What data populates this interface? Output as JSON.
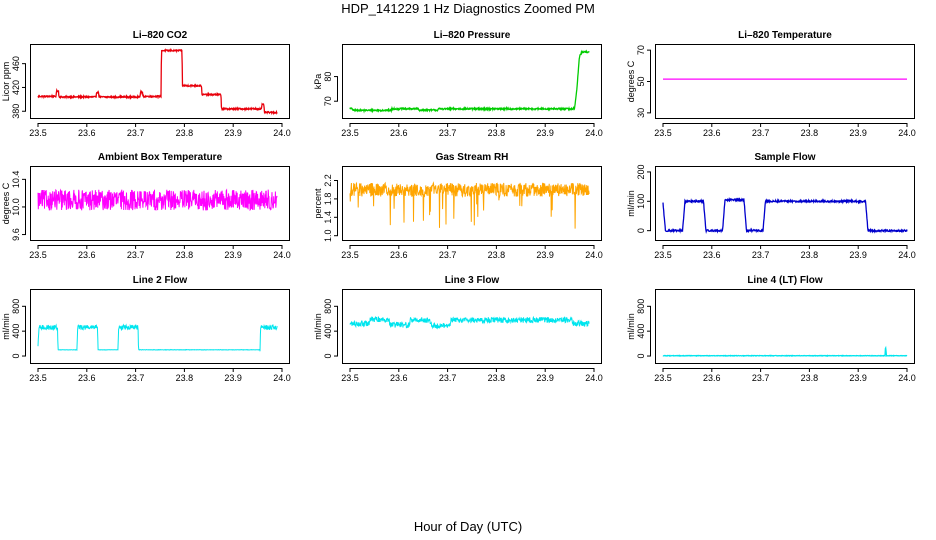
{
  "figure": {
    "title": "HDP_141229  1 Hz Diagnostics Zoomed PM",
    "xlabel": "Hour of Day (UTC)"
  },
  "chart_data": [
    {
      "type": "line",
      "title": "Li–820 CO2",
      "ylabel": "Licor ppm",
      "color": "#e8000b",
      "xlim": [
        23.5,
        24.0
      ],
      "xticks": [
        "23.5",
        "23.6",
        "23.7",
        "23.8",
        "23.9",
        "24.0"
      ],
      "ylim": [
        372,
        488
      ],
      "yticks": [
        "380",
        "420",
        "460"
      ],
      "ytick_values": [
        380,
        420,
        460
      ],
      "noise": 1.2,
      "series": [
        {
          "x": [
            23.5,
            23.537,
            23.538,
            23.542,
            23.543,
            23.619,
            23.62,
            23.624,
            23.625,
            23.709,
            23.71,
            23.714,
            23.715,
            23.752,
            23.753,
            23.795,
            23.796,
            23.835,
            23.836,
            23.875,
            23.876,
            23.958,
            23.959,
            23.963,
            23.964,
            23.99
          ],
          "y": [
            405,
            405,
            414,
            414,
            404,
            404,
            412,
            412,
            404,
            404,
            412,
            412,
            405,
            405,
            482,
            482,
            423,
            423,
            408,
            408,
            384,
            384,
            391,
            391,
            378,
            378
          ]
        }
      ]
    },
    {
      "type": "line",
      "title": "Li–820 Pressure",
      "ylabel": "kPa",
      "color": "#00cc00",
      "xlim": [
        23.5,
        24.0
      ],
      "xticks": [
        "23.5",
        "23.6",
        "23.7",
        "23.8",
        "23.9",
        "24.0"
      ],
      "ylim": [
        64,
        92
      ],
      "yticks": [
        "70",
        "80"
      ],
      "ytick_values": [
        70,
        80
      ],
      "noise": 0.3,
      "series": [
        {
          "x": [
            23.5,
            23.505,
            23.506,
            23.585,
            23.586,
            23.64,
            23.641,
            23.68,
            23.681,
            23.96,
            23.965,
            23.97,
            23.975,
            23.99
          ],
          "y": [
            67,
            67,
            66.3,
            66.3,
            66.9,
            66.9,
            66.4,
            66.4,
            66.9,
            66.9,
            75,
            88,
            90,
            90
          ]
        }
      ]
    },
    {
      "type": "line",
      "title": "Li–820 Temperature",
      "ylabel": "degrees C",
      "color": "#ff00ff",
      "xlim": [
        23.5,
        24.0
      ],
      "xticks": [
        "23.5",
        "23.6",
        "23.7",
        "23.8",
        "23.9",
        "24.0"
      ],
      "ylim": [
        28,
        72
      ],
      "yticks": [
        "30",
        "50",
        "70"
      ],
      "ytick_values": [
        30,
        50,
        70
      ],
      "noise": 0,
      "series": [
        {
          "x": [
            23.5,
            24.0
          ],
          "y": [
            51.5,
            51.5
          ]
        }
      ]
    },
    {
      "type": "line",
      "title": "Ambient Box Temperature",
      "ylabel": "degrees C",
      "color": "#ff00ff",
      "xlim": [
        23.5,
        24.0
      ],
      "xticks": [
        "23.5",
        "23.6",
        "23.7",
        "23.8",
        "23.9",
        "24.0"
      ],
      "ylim": [
        9.55,
        10.55
      ],
      "yticks": [
        "9.6",
        "10.0",
        "10.4"
      ],
      "ytick_values": [
        9.6,
        10.0,
        10.4
      ],
      "noise": 0.15,
      "series": [
        {
          "x": [
            23.5,
            23.99
          ],
          "y": [
            10.1,
            10.1
          ]
        }
      ]
    },
    {
      "type": "line",
      "title": "Gas Stream RH",
      "ylabel": "percent",
      "color": "#ffa500",
      "xlim": [
        23.5,
        24.0
      ],
      "xticks": [
        "23.5",
        "23.6",
        "23.7",
        "23.8",
        "23.9",
        "24.0"
      ],
      "ylim": [
        0.95,
        2.45
      ],
      "yticks": [
        "1.0",
        "1.4",
        "1.8",
        "2.2"
      ],
      "ytick_values": [
        1.0,
        1.4,
        1.8,
        2.2
      ],
      "noise": 0.15,
      "series": [
        {
          "x": [
            23.5,
            23.99
          ],
          "y": [
            2.0,
            2.0
          ]
        }
      ]
    },
    {
      "type": "line",
      "title": "Sample Flow",
      "ylabel": "ml/min",
      "color": "#0000cc",
      "xlim": [
        23.5,
        24.0
      ],
      "xticks": [
        "23.5",
        "23.6",
        "23.7",
        "23.8",
        "23.9",
        "24.0"
      ],
      "ylim": [
        -25,
        210
      ],
      "yticks": [
        "0",
        "100",
        "200"
      ],
      "ytick_values": [
        0,
        100,
        200
      ],
      "noise": 3,
      "series": [
        {
          "x": [
            23.5,
            23.505,
            23.506,
            23.54,
            23.545,
            23.583,
            23.588,
            23.622,
            23.627,
            23.666,
            23.671,
            23.705,
            23.71,
            23.915,
            23.92,
            24.0
          ],
          "y": [
            95,
            0,
            0,
            0,
            100,
            100,
            0,
            0,
            105,
            105,
            0,
            0,
            100,
            100,
            0,
            0
          ]
        }
      ]
    },
    {
      "type": "line",
      "title": "Line 2 Flow",
      "ylabel": "ml/min",
      "color": "#00e5ee",
      "xlim": [
        23.5,
        24.0
      ],
      "xticks": [
        "23.5",
        "23.6",
        "23.7",
        "23.8",
        "23.9",
        "24.0"
      ],
      "ylim": [
        -80,
        1030
      ],
      "yticks": [
        "0",
        "400",
        "800"
      ],
      "ytick_values": [
        0,
        400,
        800
      ],
      "noise": 40,
      "noise_band": [
        [
          23.5,
          23.54
        ],
        [
          23.58,
          23.62
        ],
        [
          23.665,
          23.705
        ],
        [
          23.955,
          24.0
        ]
      ],
      "series": [
        {
          "x": [
            23.5,
            23.502,
            23.54,
            23.541,
            23.58,
            23.581,
            23.622,
            23.623,
            23.664,
            23.665,
            23.705,
            23.706,
            23.955,
            23.956,
            23.99
          ],
          "y": [
            120,
            460,
            460,
            100,
            100,
            460,
            460,
            100,
            100,
            460,
            460,
            100,
            100,
            460,
            460
          ]
        }
      ]
    },
    {
      "type": "line",
      "title": "Line 3 Flow",
      "ylabel": "ml/min",
      "color": "#00e5ee",
      "xlim": [
        23.5,
        24.0
      ],
      "xticks": [
        "23.5",
        "23.6",
        "23.7",
        "23.8",
        "23.9",
        "24.0"
      ],
      "ylim": [
        -80,
        1030
      ],
      "yticks": [
        "0",
        "400",
        "800"
      ],
      "ytick_values": [
        0,
        400,
        800
      ],
      "noise": 45,
      "noise_band": [
        [
          23.5,
          24.0
        ]
      ],
      "series": [
        {
          "x": [
            23.5,
            23.54,
            23.541,
            23.58,
            23.581,
            23.622,
            23.623,
            23.664,
            23.665,
            23.705,
            23.706,
            23.955,
            23.956,
            23.99
          ],
          "y": [
            520,
            520,
            590,
            590,
            500,
            500,
            580,
            580,
            490,
            490,
            580,
            580,
            520,
            520
          ]
        }
      ]
    },
    {
      "type": "line",
      "title": "Line 4 (LT) Flow",
      "ylabel": "ml/min",
      "color": "#00e5ee",
      "xlim": [
        23.5,
        24.0
      ],
      "xticks": [
        "23.5",
        "23.6",
        "23.7",
        "23.8",
        "23.9",
        "24.0"
      ],
      "ylim": [
        -80,
        1030
      ],
      "yticks": [
        "0",
        "400",
        "800"
      ],
      "ytick_values": [
        0,
        400,
        800
      ],
      "noise": 4,
      "series": [
        {
          "x": [
            23.5,
            23.955,
            23.956,
            23.958,
            23.96,
            24.0
          ],
          "y": [
            5,
            5,
            160,
            5,
            5,
            5
          ]
        }
      ]
    }
  ]
}
